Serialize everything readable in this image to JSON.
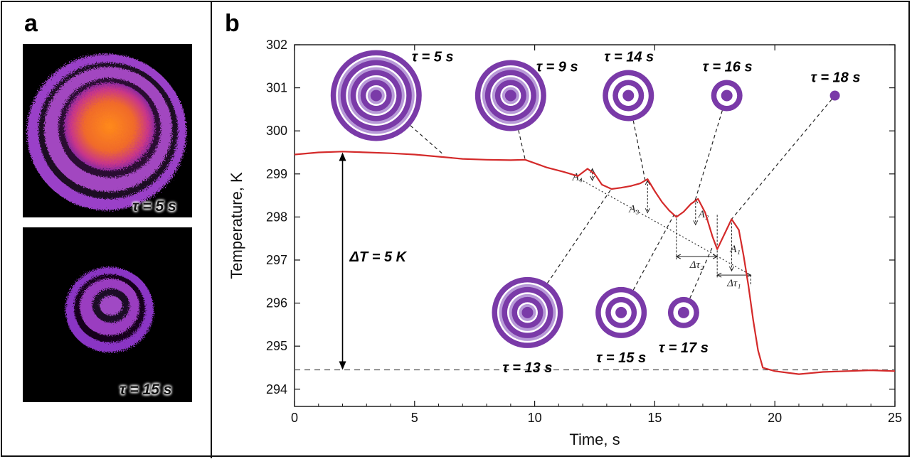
{
  "panel_a": {
    "letter": "a",
    "top_label": "τ = 5 s",
    "bottom_label": "τ = 15 s"
  },
  "panel_b": {
    "letter": "b"
  },
  "colors": {
    "curve": "#d42a2a",
    "target": "#7a3aa8",
    "target_light": "#b89ad8",
    "frame": "#111111"
  },
  "chart_data": {
    "type": "line",
    "title": "",
    "xlabel": "Time, s",
    "ylabel": "Temperature, K",
    "xlim": [
      0,
      25
    ],
    "ylim": [
      293.6,
      302
    ],
    "xticks": [
      0,
      5,
      10,
      15,
      20,
      25
    ],
    "yticks": [
      294,
      295,
      296,
      297,
      298,
      299,
      300,
      301,
      302
    ],
    "series": [
      {
        "x": [
          0,
          1,
          2,
          3,
          4,
          5,
          6,
          7,
          8,
          9,
          9.6,
          10.5,
          11.2,
          11.8,
          12.2,
          12.5,
          12.8,
          13.2,
          13.6,
          14.0,
          14.4,
          14.7,
          15.0,
          15.3,
          15.6,
          15.9,
          16.2,
          16.5,
          16.8,
          17.1,
          17.4,
          17.6,
          17.9,
          18.2,
          18.5,
          18.7,
          18.9,
          19.1,
          19.3,
          19.5,
          20,
          21,
          22,
          23,
          24,
          25
        ],
        "y": [
          299.45,
          299.5,
          299.52,
          299.5,
          299.48,
          299.45,
          299.4,
          299.35,
          299.33,
          299.32,
          299.33,
          299.15,
          299.05,
          298.95,
          299.12,
          299.0,
          298.75,
          298.65,
          298.68,
          298.72,
          298.78,
          298.88,
          298.6,
          298.35,
          298.15,
          298.0,
          298.12,
          298.3,
          298.42,
          298.1,
          297.55,
          297.25,
          297.6,
          297.95,
          297.7,
          297.1,
          296.4,
          295.6,
          294.9,
          294.5,
          294.42,
          294.35,
          294.4,
          294.42,
          294.44,
          294.42
        ]
      }
    ],
    "annotations": {
      "baseline_y": 294.45,
      "delta_label": "ΔT = 5 K",
      "delta_from": 299.5,
      "delta_to": 294.45,
      "delta_x": 2,
      "trend_line": {
        "x": [
          11.5,
          19.0
        ],
        "y": [
          299.0,
          296.65
        ]
      },
      "amplitudes": [
        {
          "label": "A₄",
          "x": 12.4,
          "y_top": 299.12,
          "y_bottom": 298.85
        },
        {
          "label": "A₃",
          "x": 14.7,
          "y_top": 298.85,
          "y_bottom": 298.1
        },
        {
          "label": "A₂",
          "x": 16.7,
          "y_top": 298.42,
          "y_bottom": 297.82
        },
        {
          "label": "A₁",
          "x": 18.2,
          "y_top": 297.95,
          "y_bottom": 296.75
        }
      ],
      "periods": [
        {
          "label": "Δτ₂",
          "x1": 15.9,
          "x2": 17.6,
          "y": 297.08
        },
        {
          "label": "Δτ₁",
          "x1": 17.6,
          "x2": 19.0,
          "y": 296.65
        }
      ],
      "targets": [
        {
          "label": "τ = 5 s",
          "x": 3.4,
          "y": 300.82,
          "rings": 4,
          "point": [
            6.2,
            299.45
          ],
          "label_pos": "right"
        },
        {
          "label": "τ = 9 s",
          "x": 9.0,
          "y": 300.82,
          "rings": 3,
          "point": [
            9.6,
            299.34
          ],
          "label_pos": "right"
        },
        {
          "label": "τ = 13 s",
          "x": 9.7,
          "y": 295.78,
          "rings": 3,
          "point": [
            13.2,
            298.66
          ],
          "label_pos": "below"
        },
        {
          "label": "τ = 14 s",
          "x": 13.9,
          "y": 300.82,
          "rings": 2,
          "point": [
            14.6,
            298.85
          ],
          "label_pos": "above"
        },
        {
          "label": "τ = 15 s",
          "x": 13.6,
          "y": 295.78,
          "rings": 2,
          "point": [
            15.8,
            298.05
          ],
          "label_pos": "below"
        },
        {
          "label": "τ = 16 s",
          "x": 18.0,
          "y": 300.82,
          "rings": 1,
          "point": [
            16.7,
            298.42
          ],
          "label_pos": "above"
        },
        {
          "label": "τ = 17 s",
          "x": 16.2,
          "y": 295.78,
          "rings": 1,
          "point": [
            17.4,
            297.3
          ],
          "label_pos": "below"
        },
        {
          "label": "τ = 18 s",
          "x": 22.5,
          "y": 300.82,
          "rings": 0,
          "point": [
            18.2,
            297.95
          ],
          "label_pos": "above"
        }
      ]
    }
  }
}
